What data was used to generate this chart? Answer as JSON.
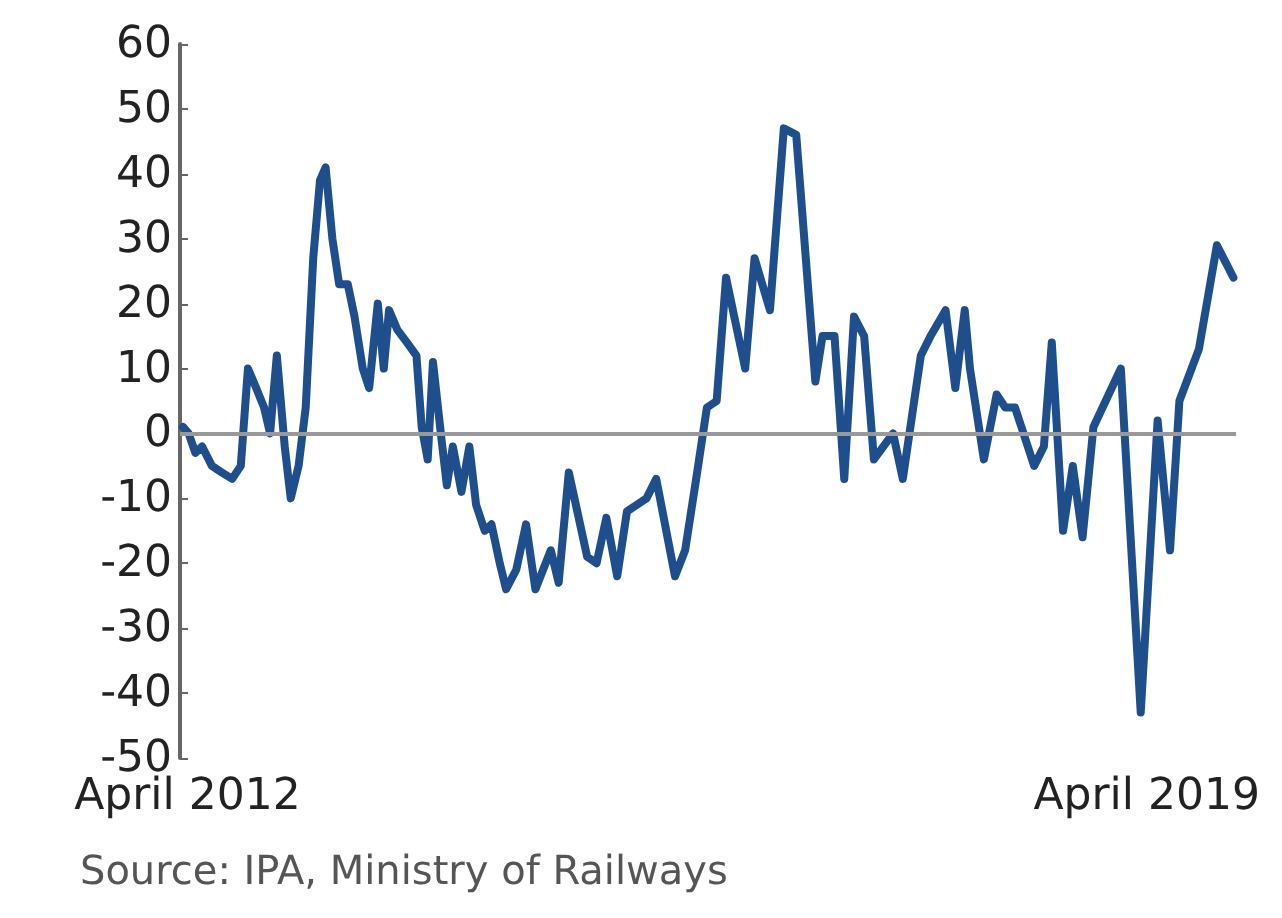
{
  "chart_data": {
    "type": "line",
    "x": [
      "2012-03-20",
      "2012-04-04",
      "2012-04-22",
      "2012-05-10",
      "2012-06-05",
      "2012-07-01",
      "2012-07-29",
      "2012-08-21",
      "2012-09-09",
      "2012-10-01",
      "2012-10-22",
      "2012-11-07",
      "2012-11-25",
      "2012-12-16",
      "2013-01-01",
      "2013-01-22",
      "2013-02-10",
      "2013-03-02",
      "2013-03-20",
      "2013-04-04",
      "2013-04-22",
      "2013-05-10",
      "2013-06-02",
      "2013-06-20",
      "2013-07-12",
      "2013-07-29",
      "2013-08-21",
      "2013-09-06",
      "2013-09-20",
      "2013-10-12",
      "2013-11-07",
      "2013-12-02",
      "2013-12-16",
      "2014-01-01",
      "2014-01-15",
      "2014-02-07",
      "2014-02-21",
      "2014-03-09",
      "2014-04-01",
      "2014-04-22",
      "2014-05-10",
      "2014-06-02",
      "2014-06-20",
      "2014-07-12",
      "2014-07-29",
      "2014-08-25",
      "2014-09-20",
      "2014-10-15",
      "2014-11-25",
      "2014-12-16",
      "2015-01-12",
      "2015-03-02",
      "2015-03-27",
      "2015-04-22",
      "2015-05-21",
      "2015-06-16",
      "2015-08-07",
      "2015-09-02",
      "2015-10-22",
      "2015-11-18",
      "2015-12-20",
      "2016-01-15",
      "2016-02-10",
      "2016-03-06",
      "2016-04-26",
      "2016-05-21",
      "2016-07-01",
      "2016-08-07",
      "2016-09-09",
      "2016-10-30",
      "2016-11-18",
      "2016-12-20",
      "2017-01-15",
      "2017-02-10",
      "2017-03-09",
      "2017-04-04",
      "2017-05-25",
      "2017-06-20",
      "2017-08-07",
      "2017-09-02",
      "2017-10-12",
      "2017-11-07",
      "2017-12-02",
      "2017-12-16",
      "2018-01-22",
      "2018-02-25",
      "2018-03-20",
      "2018-04-15",
      "2018-06-05",
      "2018-07-01",
      "2018-07-22",
      "2018-08-21",
      "2018-09-16",
      "2018-10-12",
      "2018-11-10",
      "2019-01-22",
      "2019-03-16",
      "2019-04-30",
      "2019-06-02",
      "2019-06-27",
      "2019-08-18",
      "2019-10-05",
      "2019-11-18"
    ],
    "series": [
      {
        "color": "#1f4e8c",
        "values": [
          1,
          0,
          -3,
          -2,
          -5,
          -6,
          -7,
          -5,
          10,
          7,
          4,
          0,
          12,
          -2,
          -10,
          -5,
          4,
          27,
          39,
          41,
          30,
          23,
          23,
          18,
          10,
          7,
          20,
          10,
          19,
          16,
          14,
          12,
          1,
          -4,
          11,
          -1,
          -8,
          -2,
          -9,
          -2,
          -11,
          -15,
          -14,
          -20,
          -24,
          -21,
          -14,
          -24,
          -18,
          -23,
          -6,
          -19,
          -20,
          -13,
          -22,
          -12,
          -10,
          -7,
          -22,
          -18,
          -6,
          4,
          5,
          24,
          10,
          27,
          19,
          47,
          46,
          8,
          15,
          15,
          -7,
          18,
          15,
          -4,
          0,
          -7,
          12,
          15,
          19,
          7,
          19,
          10,
          -4,
          6,
          4,
          4,
          -5,
          -2,
          14,
          -15,
          -5,
          -16,
          1,
          10,
          -43,
          2,
          -18,
          5,
          13,
          29,
          24
        ]
      }
    ],
    "xlim": [
      "2012-03-12",
      "2019-11-25"
    ],
    "xticks": [
      {
        "value": "2012-04-01",
        "label": "April 2012"
      },
      {
        "value": "2019-04-01",
        "label": "April 2019"
      }
    ],
    "ylim": [
      -50,
      60
    ],
    "yticks": [
      -50,
      -40,
      -30,
      -20,
      -10,
      0,
      10,
      20,
      30,
      40,
      50,
      60
    ],
    "ref_lines": [
      {
        "axis": "y",
        "value": 0,
        "color": "#999999"
      }
    ],
    "annotations": [
      "Source: IPA, Ministry of Railways"
    ],
    "grid": false,
    "marker": "none",
    "line_style": "solid"
  }
}
